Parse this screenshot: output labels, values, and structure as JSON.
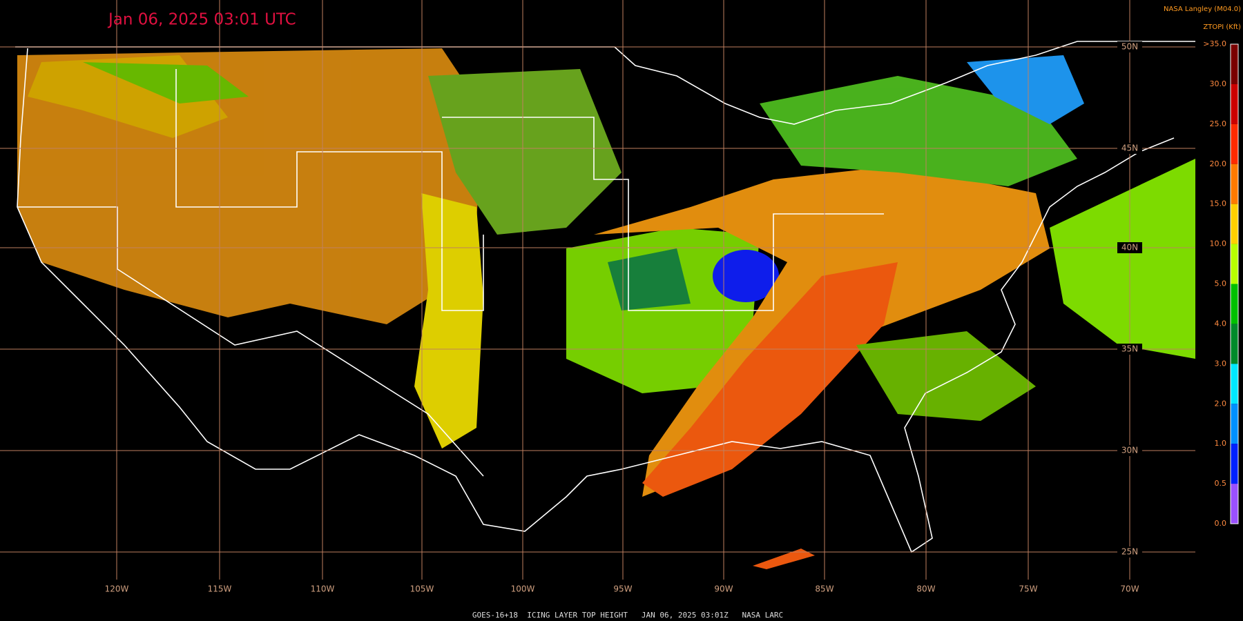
{
  "header": {
    "title": "Jan 06, 2025 03:01 UTC",
    "source": "NASA Langley (M04.0)",
    "product": "ZTOPI (Kft)"
  },
  "map": {
    "longitude_labels": [
      "120W",
      "115W",
      "110W",
      "105W",
      "100W",
      "95W",
      "90W",
      "85W",
      "80W",
      "75W",
      "70W"
    ],
    "latitude_labels": [
      "50N",
      "45N",
      "40N",
      "35N",
      "30N",
      "25N"
    ]
  },
  "colorbar": {
    "labels": [
      ">35.0",
      "30.0",
      "25.0",
      "20.0",
      "15.0",
      "10.0",
      "5.0",
      "4.0",
      "3.0",
      "2.0",
      "1.0",
      "0.5",
      "0.0"
    ],
    "colors": [
      "#7a0000",
      "#cc0000",
      "#ff2a00",
      "#ff7a00",
      "#ffd000",
      "#b8ff00",
      "#00c000",
      "#008a2a",
      "#00e8ff",
      "#0090ff",
      "#0020ff",
      "#9a50ff"
    ]
  },
  "footer": "GOES-16+18  ICING LAYER TOP HEIGHT   JAN 06, 2025 03:01Z   NASA LARC"
}
